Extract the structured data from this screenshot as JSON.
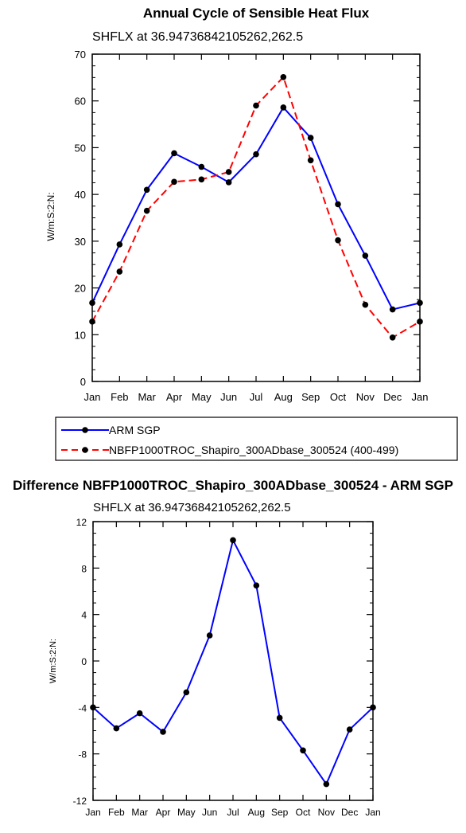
{
  "chart_data": [
    {
      "type": "line",
      "title": "Annual Cycle of Sensible Heat Flux",
      "subtitle": "SHFLX at 36.94736842105262,262.5",
      "ylabel": "W/m:S:2:N:",
      "xlabel": "",
      "categories": [
        "Jan",
        "Feb",
        "Mar",
        "Apr",
        "May",
        "Jun",
        "Jul",
        "Aug",
        "Sep",
        "Oct",
        "Nov",
        "Dec",
        "Jan"
      ],
      "ylim": [
        0,
        70
      ],
      "yticks": [
        "0",
        "10",
        "20",
        "30",
        "40",
        "50",
        "60",
        "70"
      ],
      "legend_position": "bottom",
      "series": [
        {
          "name": "ARM SGP",
          "color": "#0000ff",
          "dashed": false,
          "values": [
            16.8,
            29.3,
            41.0,
            48.8,
            45.9,
            42.6,
            48.6,
            58.6,
            52.1,
            37.9,
            26.9,
            15.4,
            16.8
          ]
        },
        {
          "name": "NBFP1000TROC_Shapiro_300ADbase_300524 (400-499)",
          "color": "#ff0000",
          "dashed": true,
          "values": [
            12.8,
            23.5,
            36.5,
            42.7,
            43.2,
            44.8,
            59.0,
            65.1,
            47.3,
            30.2,
            16.4,
            9.4,
            12.8
          ]
        }
      ]
    },
    {
      "type": "line",
      "title": "Difference NBFP1000TROC_Shapiro_300ADbase_300524 - ARM SGP",
      "subtitle": "SHFLX at 36.94736842105262,262.5",
      "ylabel": "W/m:S:2:N:",
      "xlabel": "",
      "categories": [
        "Jan",
        "Feb",
        "Mar",
        "Apr",
        "May",
        "Jun",
        "Jul",
        "Aug",
        "Sep",
        "Oct",
        "Nov",
        "Dec",
        "Jan"
      ],
      "ylim": [
        -12,
        12
      ],
      "yticks": [
        "-12",
        "-8",
        "-4",
        "0",
        "4",
        "8",
        "12"
      ],
      "series": [
        {
          "color": "#0000ff",
          "dashed": false,
          "values": [
            -4.0,
            -5.8,
            -4.5,
            -6.1,
            -2.7,
            2.2,
            10.4,
            6.5,
            -4.9,
            -7.7,
            -10.6,
            -5.9,
            -4.0
          ]
        }
      ]
    }
  ]
}
